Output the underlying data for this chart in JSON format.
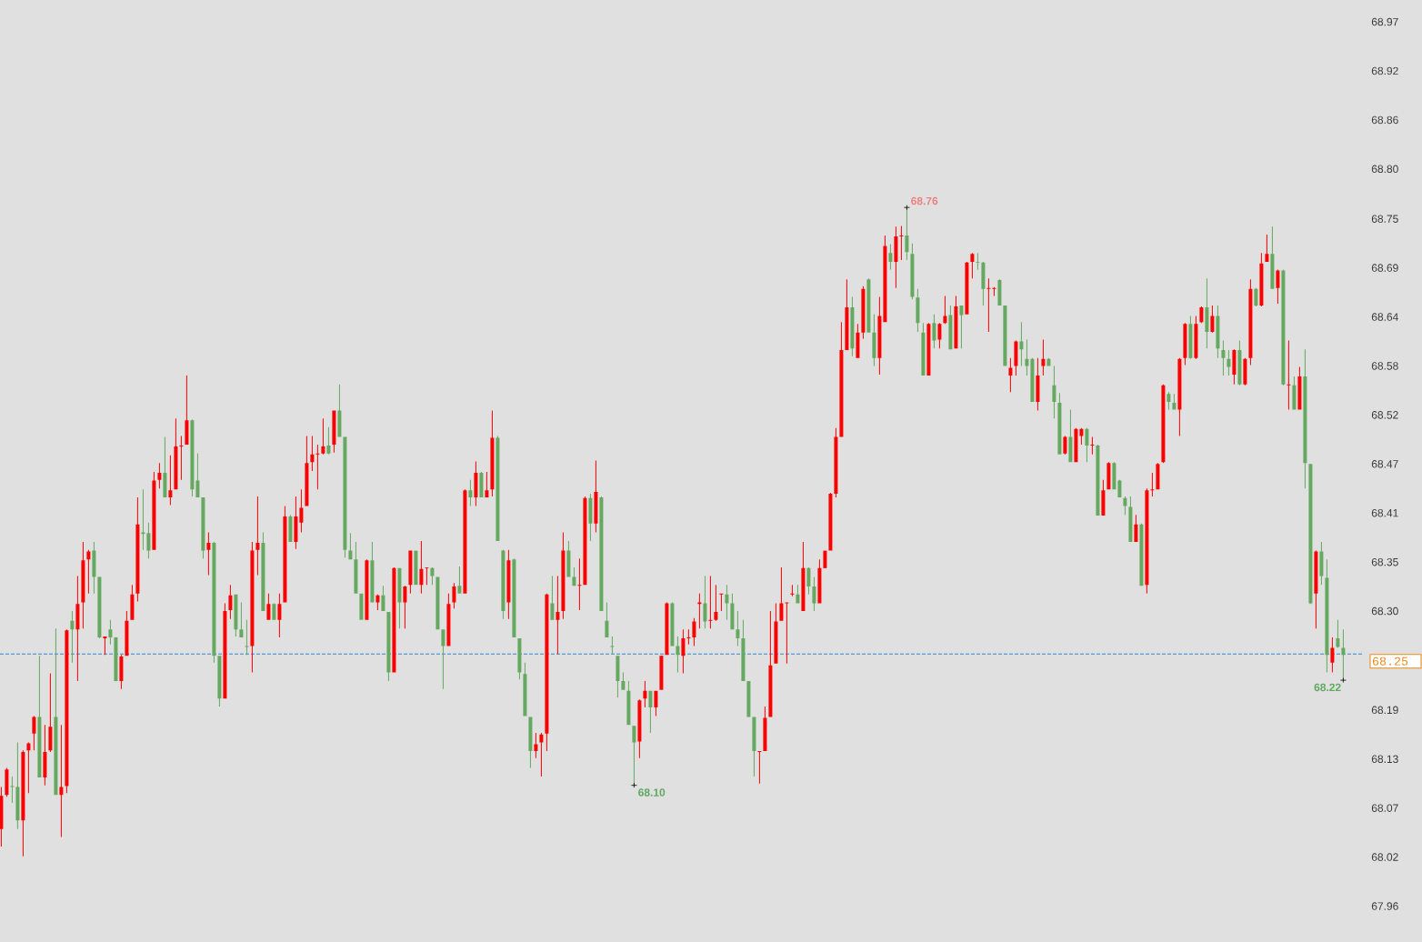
{
  "chart_data": {
    "type": "candlestick",
    "categories": [
      null,
      null,
      null,
      null,
      null,
      null,
      null,
      null,
      null,
      null,
      null,
      null,
      null,
      null,
      null,
      null,
      null,
      null,
      null,
      null,
      null,
      null,
      null,
      null,
      null,
      null,
      null,
      null,
      null,
      null,
      null,
      null,
      null,
      null,
      null,
      null,
      null,
      null,
      null,
      null,
      null,
      null,
      null,
      null,
      null,
      null,
      null,
      null,
      null,
      null,
      null,
      null,
      null,
      null,
      null,
      null,
      null,
      null,
      null,
      null,
      null,
      null,
      null,
      null,
      null,
      null,
      null,
      null,
      null,
      null,
      null,
      null,
      null,
      null,
      null,
      null,
      null,
      null,
      null,
      null,
      null,
      null,
      null,
      null,
      null,
      null,
      null,
      null,
      null,
      null,
      null,
      null,
      null,
      null,
      null,
      null,
      null,
      null,
      null,
      null,
      null,
      null,
      null,
      null,
      null,
      null,
      null,
      null,
      null,
      null,
      null,
      null,
      null,
      null,
      null,
      null,
      null,
      null,
      null,
      null,
      null,
      null,
      null,
      null,
      null,
      null,
      null,
      null,
      null,
      null,
      null,
      null,
      null,
      null,
      null,
      null,
      null,
      null,
      null,
      null,
      null,
      null,
      null,
      null,
      null,
      null,
      null,
      null,
      null,
      null,
      null,
      null,
      null,
      null,
      null,
      null,
      null,
      null,
      null,
      null,
      null,
      null,
      null,
      null,
      null,
      null,
      null,
      null,
      null,
      null,
      null,
      null,
      null,
      null,
      null,
      null,
      null,
      null,
      null,
      null,
      null,
      null,
      null,
      null,
      null,
      null,
      null,
      null,
      null,
      null,
      null,
      null,
      null,
      null,
      null,
      null,
      null,
      null,
      null,
      null,
      null,
      null,
      null,
      null,
      null,
      null,
      null,
      null,
      null,
      null,
      null,
      null,
      null,
      null,
      null,
      null,
      null,
      null,
      null,
      null,
      null,
      null,
      null,
      null,
      null,
      null,
      null,
      null,
      null,
      null,
      null,
      null,
      null,
      null,
      null,
      null,
      null,
      null,
      null,
      null,
      null,
      null,
      null,
      null,
      null,
      null,
      null
    ],
    "ohlc": [
      [
        68.05,
        68.098,
        68.03,
        68.088
      ],
      [
        68.089,
        68.12,
        68.087,
        68.118
      ],
      [
        68.099,
        68.11,
        68.08,
        68.098
      ],
      [
        68.098,
        68.149,
        68.05,
        68.06
      ],
      [
        68.06,
        68.14,
        68.019,
        68.138
      ],
      [
        68.14,
        68.149,
        68.091,
        68.148
      ],
      [
        68.159,
        68.179,
        68.14,
        68.178
      ],
      [
        68.178,
        68.248,
        68.109,
        68.109
      ],
      [
        68.109,
        68.169,
        68.1,
        68.138
      ],
      [
        68.14,
        68.228,
        68.138,
        68.167
      ],
      [
        68.178,
        68.279,
        68.089,
        68.089
      ],
      [
        68.089,
        68.169,
        68.041,
        68.098
      ],
      [
        68.099,
        68.278,
        68.091,
        68.277
      ],
      [
        68.288,
        68.299,
        68.24,
        68.278
      ],
      [
        68.278,
        68.339,
        68.219,
        68.307
      ],
      [
        68.309,
        68.378,
        68.279,
        68.357
      ],
      [
        68.358,
        68.369,
        68.319,
        68.367
      ],
      [
        68.368,
        68.378,
        68.319,
        68.338
      ],
      [
        68.338,
        68.338,
        68.268,
        68.269
      ],
      [
        68.268,
        68.27,
        68.249,
        68.27
      ],
      [
        68.278,
        68.289,
        68.261,
        68.269
      ],
      [
        68.269,
        68.269,
        68.219,
        68.219
      ],
      [
        68.219,
        68.249,
        68.21,
        68.247
      ],
      [
        68.248,
        68.299,
        68.248,
        68.288
      ],
      [
        68.289,
        68.329,
        68.289,
        68.318
      ],
      [
        68.319,
        68.429,
        68.31,
        68.398
      ],
      [
        68.389,
        68.438,
        68.369,
        68.387
      ],
      [
        68.388,
        68.4,
        68.359,
        68.368
      ],
      [
        68.369,
        68.458,
        68.369,
        68.448
      ],
      [
        68.449,
        68.468,
        68.439,
        68.457
      ],
      [
        68.457,
        68.498,
        68.429,
        68.429
      ],
      [
        68.429,
        68.477,
        68.42,
        68.437
      ],
      [
        68.438,
        68.519,
        68.438,
        68.487
      ],
      [
        68.487,
        68.499,
        68.449,
        68.488
      ],
      [
        68.489,
        68.568,
        68.489,
        68.517
      ],
      [
        68.517,
        68.518,
        68.43,
        68.438
      ],
      [
        68.448,
        68.479,
        68.429,
        68.429
      ],
      [
        68.429,
        68.429,
        68.359,
        68.368
      ],
      [
        68.369,
        68.389,
        68.34,
        68.377
      ],
      [
        68.377,
        68.378,
        68.24,
        68.248
      ],
      [
        68.248,
        68.248,
        68.19,
        68.199
      ],
      [
        68.199,
        68.308,
        68.199,
        68.299
      ],
      [
        68.3,
        68.329,
        68.29,
        68.317
      ],
      [
        68.318,
        68.318,
        68.27,
        68.278
      ],
      [
        68.278,
        68.309,
        68.269,
        68.269
      ],
      [
        68.259,
        68.289,
        68.249,
        68.258
      ],
      [
        68.259,
        68.378,
        68.229,
        68.368
      ],
      [
        68.369,
        68.43,
        68.34,
        68.377
      ],
      [
        68.377,
        68.389,
        68.299,
        68.299
      ],
      [
        68.289,
        68.319,
        68.289,
        68.307
      ],
      [
        68.307,
        68.308,
        68.289,
        68.289
      ],
      [
        68.289,
        68.319,
        68.269,
        68.307
      ],
      [
        68.309,
        68.419,
        68.309,
        68.407
      ],
      [
        68.407,
        68.409,
        68.378,
        68.378
      ],
      [
        68.378,
        68.43,
        68.37,
        68.407
      ],
      [
        68.4,
        68.438,
        68.389,
        68.417
      ],
      [
        68.419,
        68.499,
        68.419,
        68.468
      ],
      [
        68.469,
        68.499,
        68.459,
        68.478
      ],
      [
        68.478,
        68.489,
        68.438,
        68.479
      ],
      [
        68.479,
        68.519,
        68.478,
        68.487
      ],
      [
        68.488,
        68.509,
        68.478,
        68.479
      ],
      [
        68.489,
        68.528,
        68.48,
        68.528
      ],
      [
        68.528,
        68.558,
        68.498,
        68.498
      ],
      [
        68.498,
        68.498,
        68.36,
        68.369
      ],
      [
        68.368,
        68.388,
        68.358,
        68.358
      ],
      [
        68.358,
        68.378,
        68.319,
        68.319
      ],
      [
        68.319,
        68.319,
        68.289,
        68.289
      ],
      [
        68.289,
        68.358,
        68.289,
        68.357
      ],
      [
        68.357,
        68.378,
        68.309,
        68.309
      ],
      [
        68.309,
        68.318,
        68.3,
        68.317
      ],
      [
        68.317,
        68.328,
        68.299,
        68.299
      ],
      [
        68.298,
        68.298,
        68.219,
        68.229
      ],
      [
        68.229,
        68.349,
        68.229,
        68.348
      ],
      [
        68.348,
        68.348,
        68.279,
        68.309
      ],
      [
        68.309,
        68.328,
        68.279,
        68.327
      ],
      [
        68.329,
        68.368,
        68.319,
        68.368
      ],
      [
        68.368,
        68.368,
        68.329,
        68.329
      ],
      [
        68.329,
        68.379,
        68.319,
        68.347
      ],
      [
        68.348,
        68.349,
        68.329,
        68.349
      ],
      [
        68.348,
        68.349,
        68.329,
        68.339
      ],
      [
        68.338,
        68.338,
        68.278,
        68.278
      ],
      [
        68.278,
        68.278,
        68.21,
        68.259
      ],
      [
        68.259,
        68.319,
        68.259,
        68.307
      ],
      [
        68.309,
        68.331,
        68.302,
        68.327
      ],
      [
        68.328,
        68.35,
        68.319,
        68.319
      ],
      [
        68.319,
        68.438,
        68.319,
        68.437
      ],
      [
        68.437,
        68.449,
        68.419,
        68.429
      ],
      [
        68.429,
        68.47,
        68.419,
        68.457
      ],
      [
        68.457,
        68.458,
        68.429,
        68.429
      ],
      [
        68.429,
        68.458,
        68.429,
        68.437
      ],
      [
        68.438,
        68.528,
        68.43,
        68.497
      ],
      [
        68.497,
        68.499,
        68.379,
        68.379
      ],
      [
        68.368,
        68.369,
        68.29,
        68.299
      ],
      [
        68.309,
        68.369,
        68.29,
        68.357
      ],
      [
        68.358,
        68.359,
        68.269,
        68.269
      ],
      [
        68.268,
        68.268,
        68.221,
        68.229
      ],
      [
        68.227,
        68.24,
        68.179,
        68.179
      ],
      [
        68.178,
        68.178,
        68.12,
        68.139
      ],
      [
        68.139,
        68.16,
        68.131,
        68.147
      ],
      [
        68.149,
        68.16,
        68.11,
        68.158
      ],
      [
        68.159,
        68.319,
        68.139,
        68.318
      ],
      [
        68.308,
        68.339,
        68.289,
        68.289
      ],
      [
        68.289,
        68.339,
        68.25,
        68.298
      ],
      [
        68.299,
        68.389,
        68.29,
        68.368
      ],
      [
        68.368,
        68.379,
        68.338,
        68.338
      ],
      [
        68.338,
        68.349,
        68.328,
        68.328
      ],
      [
        68.328,
        68.359,
        68.3,
        68.329
      ],
      [
        68.329,
        68.43,
        68.329,
        68.428
      ],
      [
        68.428,
        68.433,
        68.379,
        68.399
      ],
      [
        68.399,
        68.471,
        68.389,
        68.435
      ],
      [
        68.429,
        68.43,
        68.299,
        68.299
      ],
      [
        68.288,
        68.309,
        68.269,
        68.269
      ],
      [
        68.259,
        68.27,
        68.25,
        68.258
      ],
      [
        68.248,
        68.248,
        68.2,
        68.219
      ],
      [
        68.219,
        68.229,
        68.209,
        68.209
      ],
      [
        68.208,
        68.219,
        68.169,
        68.169
      ],
      [
        68.168,
        68.168,
        68.1,
        68.149
      ],
      [
        68.15,
        68.198,
        68.131,
        68.197
      ],
      [
        68.199,
        68.219,
        68.189,
        68.208
      ],
      [
        68.208,
        68.208,
        68.16,
        68.189
      ],
      [
        68.189,
        68.208,
        68.179,
        68.208
      ],
      [
        68.209,
        68.248,
        68.209,
        68.248
      ],
      [
        68.249,
        68.309,
        68.249,
        68.308
      ],
      [
        68.308,
        68.309,
        68.259,
        68.259
      ],
      [
        68.259,
        68.27,
        68.229,
        68.249
      ],
      [
        68.248,
        68.278,
        68.228,
        68.268
      ],
      [
        68.268,
        68.278,
        68.261,
        68.269
      ],
      [
        68.269,
        68.291,
        68.259,
        68.287
      ],
      [
        68.307,
        68.319,
        68.279,
        68.309
      ],
      [
        68.308,
        68.339,
        68.279,
        68.287
      ],
      [
        68.288,
        68.339,
        68.279,
        68.289
      ],
      [
        68.289,
        68.329,
        68.288,
        68.298
      ],
      [
        68.318,
        68.319,
        68.299,
        68.319
      ],
      [
        68.318,
        68.329,
        68.289,
        68.308
      ],
      [
        68.308,
        68.319,
        68.278,
        68.278
      ],
      [
        68.278,
        68.299,
        68.259,
        68.268
      ],
      [
        68.268,
        68.289,
        68.219,
        68.219
      ],
      [
        68.219,
        68.219,
        68.178,
        68.178
      ],
      [
        68.178,
        68.178,
        68.11,
        68.139
      ],
      [
        68.138,
        68.139,
        68.102,
        68.139
      ],
      [
        68.139,
        68.19,
        68.139,
        68.177
      ],
      [
        68.178,
        68.299,
        68.178,
        68.237
      ],
      [
        68.239,
        68.308,
        68.239,
        68.287
      ],
      [
        68.288,
        68.349,
        68.288,
        68.308
      ],
      [
        68.308,
        68.309,
        68.239,
        68.309
      ],
      [
        68.318,
        68.329,
        68.316,
        68.319
      ],
      [
        68.318,
        68.329,
        68.308,
        68.308
      ],
      [
        68.299,
        68.378,
        68.299,
        68.348
      ],
      [
        68.348,
        68.349,
        68.318,
        68.327
      ],
      [
        68.327,
        68.338,
        68.299,
        68.308
      ],
      [
        68.308,
        68.358,
        68.308,
        68.348
      ],
      [
        68.348,
        68.368,
        68.348,
        68.368
      ],
      [
        68.368,
        68.434,
        68.368,
        68.433
      ],
      [
        68.433,
        68.508,
        68.429,
        68.498
      ],
      [
        68.498,
        68.629,
        68.498,
        68.597
      ],
      [
        68.597,
        68.678,
        68.597,
        68.646
      ],
      [
        68.646,
        68.658,
        68.59,
        68.599
      ],
      [
        68.588,
        68.627,
        68.588,
        68.617
      ],
      [
        68.617,
        68.67,
        68.61,
        68.667
      ],
      [
        68.678,
        68.679,
        68.617,
        68.617
      ],
      [
        68.617,
        68.638,
        68.579,
        68.588
      ],
      [
        68.588,
        68.658,
        68.569,
        68.636
      ],
      [
        68.629,
        68.728,
        68.629,
        68.716
      ],
      [
        68.708,
        68.718,
        68.689,
        68.698
      ],
      [
        68.698,
        68.738,
        68.668,
        68.727
      ],
      [
        68.727,
        68.739,
        68.7,
        68.728
      ],
      [
        68.728,
        68.76,
        68.7,
        68.709
      ],
      [
        68.707,
        68.719,
        68.655,
        68.658
      ],
      [
        68.657,
        68.667,
        68.618,
        68.628
      ],
      [
        68.617,
        68.628,
        68.568,
        68.568
      ],
      [
        68.568,
        68.628,
        68.568,
        68.627
      ],
      [
        68.628,
        68.638,
        68.599,
        68.608
      ],
      [
        68.609,
        68.628,
        68.599,
        68.627
      ],
      [
        68.628,
        68.659,
        68.627,
        68.636
      ],
      [
        68.637,
        68.648,
        68.598,
        68.598
      ],
      [
        68.599,
        68.659,
        68.599,
        68.647
      ],
      [
        68.648,
        68.648,
        68.599,
        68.637
      ],
      [
        68.638,
        68.698,
        68.638,
        68.697
      ],
      [
        68.698,
        68.708,
        68.679,
        68.707
      ],
      [
        68.698,
        68.708,
        68.689,
        68.697
      ],
      [
        68.697,
        68.698,
        68.648,
        68.667
      ],
      [
        68.667,
        68.679,
        68.618,
        68.668
      ],
      [
        68.667,
        68.669,
        68.659,
        68.668
      ],
      [
        68.677,
        68.678,
        68.648,
        68.648
      ],
      [
        68.648,
        68.648,
        68.579,
        68.579
      ],
      [
        68.568,
        68.588,
        68.549,
        68.577
      ],
      [
        68.579,
        68.608,
        68.568,
        68.607
      ],
      [
        68.607,
        68.629,
        68.579,
        68.598
      ],
      [
        68.587,
        68.609,
        68.568,
        68.579
      ],
      [
        68.587,
        68.588,
        68.538,
        68.538
      ],
      [
        68.538,
        68.588,
        68.528,
        68.568
      ],
      [
        68.579,
        68.609,
        68.568,
        68.587
      ],
      [
        68.587,
        68.588,
        68.579,
        68.579
      ],
      [
        68.557,
        68.579,
        68.519,
        68.538
      ],
      [
        68.537,
        68.548,
        68.478,
        68.478
      ],
      [
        68.479,
        68.499,
        68.478,
        68.498
      ],
      [
        68.498,
        68.529,
        68.469,
        68.469
      ],
      [
        68.469,
        68.508,
        68.469,
        68.507
      ],
      [
        68.499,
        68.508,
        68.489,
        68.507
      ],
      [
        68.507,
        68.508,
        68.469,
        68.488
      ],
      [
        68.488,
        68.498,
        68.478,
        68.489
      ],
      [
        68.488,
        68.489,
        68.408,
        68.408
      ],
      [
        68.408,
        68.449,
        68.408,
        68.437
      ],
      [
        68.438,
        68.469,
        68.438,
        68.468
      ],
      [
        68.468,
        68.469,
        68.438,
        68.438
      ],
      [
        68.448,
        68.449,
        68.429,
        68.429
      ],
      [
        68.428,
        68.43,
        68.409,
        68.419
      ],
      [
        68.418,
        68.43,
        68.378,
        68.378
      ],
      [
        68.378,
        68.409,
        68.378,
        68.398
      ],
      [
        68.398,
        68.399,
        68.328,
        68.328
      ],
      [
        68.329,
        68.439,
        68.319,
        68.437
      ],
      [
        68.437,
        68.457,
        68.43,
        68.438
      ],
      [
        68.438,
        68.468,
        68.438,
        68.467
      ],
      [
        68.469,
        68.558,
        68.468,
        68.557
      ],
      [
        68.547,
        68.549,
        68.529,
        68.538
      ],
      [
        68.537,
        68.547,
        68.529,
        68.529
      ],
      [
        68.529,
        68.588,
        68.499,
        68.587
      ],
      [
        68.588,
        68.628,
        68.58,
        68.627
      ],
      [
        68.627,
        68.636,
        68.587,
        68.588
      ],
      [
        68.588,
        68.636,
        68.587,
        68.627
      ],
      [
        68.629,
        68.647,
        68.628,
        68.646
      ],
      [
        68.646,
        68.679,
        68.599,
        68.618
      ],
      [
        68.618,
        68.648,
        68.617,
        68.636
      ],
      [
        68.636,
        68.648,
        68.588,
        68.599
      ],
      [
        68.597,
        68.608,
        68.568,
        68.588
      ],
      [
        68.587,
        68.597,
        68.568,
        68.578
      ],
      [
        68.569,
        68.598,
        68.558,
        68.597
      ],
      [
        68.597,
        68.608,
        68.557,
        68.558
      ],
      [
        68.558,
        68.588,
        68.557,
        68.587
      ],
      [
        68.588,
        68.678,
        68.58,
        68.667
      ],
      [
        68.667,
        68.668,
        68.647,
        68.648
      ],
      [
        68.648,
        68.708,
        68.647,
        68.696
      ],
      [
        68.698,
        68.729,
        68.698,
        68.707
      ],
      [
        68.707,
        68.738,
        68.667,
        68.667
      ],
      [
        68.668,
        68.689,
        68.65,
        68.688
      ],
      [
        68.688,
        68.689,
        68.557,
        68.558
      ],
      [
        68.557,
        68.608,
        68.529,
        68.558
      ],
      [
        68.557,
        68.567,
        68.529,
        68.529
      ],
      [
        68.529,
        68.578,
        68.529,
        68.567
      ],
      [
        68.567,
        68.598,
        68.439,
        68.468
      ],
      [
        68.467,
        68.467,
        68.307,
        68.308
      ],
      [
        68.319,
        68.368,
        68.279,
        68.367
      ],
      [
        68.367,
        68.378,
        68.329,
        68.339
      ],
      [
        68.337,
        68.358,
        68.229,
        68.249
      ],
      [
        68.24,
        68.269,
        68.229,
        68.257
      ],
      [
        68.268,
        68.289,
        68.257,
        68.258
      ],
      [
        68.257,
        68.278,
        68.22,
        68.249
      ]
    ],
    "colors": [
      "#ff0000",
      "#ff0000",
      "#65a860",
      "#65a860",
      "#ff0000",
      "#ff0000",
      "#ff0000",
      "#65a860",
      "#ff0000",
      "#ff0000",
      "#65a860",
      "#ff0000",
      "#ff0000",
      "#65a860",
      "#ff0000",
      "#ff0000",
      "#ff0000",
      "#65a860",
      "#65a860",
      "#ff0000",
      "#65a860",
      "#65a860",
      "#ff0000",
      "#ff0000",
      "#ff0000",
      "#ff0000",
      "#65a860",
      "#65a860",
      "#ff0000",
      "#ff0000",
      "#65a860",
      "#ff0000",
      "#ff0000",
      "#ff0000",
      "#ff0000",
      "#65a860",
      "#65a860",
      "#65a860",
      "#ff0000",
      "#65a860",
      "#65a860",
      "#ff0000",
      "#ff0000",
      "#65a860",
      "#65a860",
      "#65a860",
      "#ff0000",
      "#ff0000",
      "#65a860",
      "#ff0000",
      "#65a860",
      "#ff0000",
      "#ff0000",
      "#65a860",
      "#ff0000",
      "#ff0000",
      "#ff0000",
      "#ff0000",
      "#ff0000",
      "#ff0000",
      "#65a860",
      "#ff0000",
      "#65a860",
      "#65a860",
      "#65a860",
      "#65a860",
      "#65a860",
      "#ff0000",
      "#65a860",
      "#ff0000",
      "#65a860",
      "#65a860",
      "#ff0000",
      "#65a860",
      "#ff0000",
      "#ff0000",
      "#65a860",
      "#ff0000",
      "#ff0000",
      "#65a860",
      "#65a860",
      "#65a860",
      "#ff0000",
      "#ff0000",
      "#65a860",
      "#ff0000",
      "#65a860",
      "#ff0000",
      "#65a860",
      "#ff0000",
      "#ff0000",
      "#65a860",
      "#65a860",
      "#ff0000",
      "#65a860",
      "#65a860",
      "#65a860",
      "#65a860",
      "#ff0000",
      "#ff0000",
      "#ff0000",
      "#65a860",
      "#ff0000",
      "#ff0000",
      "#65a860",
      "#65a860",
      "#ff0000",
      "#ff0000",
      "#65a860",
      "#ff0000",
      "#65a860",
      "#65a860",
      "#65a860",
      "#65a860",
      "#65a860",
      "#65a860",
      "#65a860",
      "#ff0000",
      "#ff0000",
      "#65a860",
      "#ff0000",
      "#ff0000",
      "#ff0000",
      "#65a860",
      "#65a860",
      "#ff0000",
      "#ff0000",
      "#ff0000",
      "#ff0000",
      "#65a860",
      "#ff0000",
      "#ff0000",
      "#ff0000",
      "#65a860",
      "#65a860",
      "#65a860",
      "#65a860",
      "#65a860",
      "#65a860",
      "#ff0000",
      "#ff0000",
      "#ff0000",
      "#ff0000",
      "#ff0000",
      "#ff0000",
      "#ff0000",
      "#65a860",
      "#ff0000",
      "#65a860",
      "#65a860",
      "#ff0000",
      "#ff0000",
      "#ff0000",
      "#ff0000",
      "#ff0000",
      "#ff0000",
      "#65a860",
      "#ff0000",
      "#ff0000",
      "#65a860",
      "#65a860",
      "#ff0000",
      "#ff0000",
      "#65a860",
      "#ff0000",
      "#ff0000",
      "#65a860",
      "#65a860",
      "#65a860",
      "#65a860",
      "#ff0000",
      "#65a860",
      "#ff0000",
      "#ff0000",
      "#65a860",
      "#ff0000",
      "#65a860",
      "#ff0000",
      "#ff0000",
      "#65a860",
      "#65a860",
      "#ff0000",
      "#ff0000",
      "#65a860",
      "#65a860",
      "#ff0000",
      "#ff0000",
      "#65a860",
      "#65a860",
      "#65a860",
      "#ff0000",
      "#ff0000",
      "#65a860",
      "#65a860",
      "#65a860",
      "#ff0000",
      "#65a860",
      "#ff0000",
      "#ff0000",
      "#65a860",
      "#ff0000",
      "#65a860",
      "#ff0000",
      "#ff0000",
      "#65a860",
      "#65a860",
      "#65a860",
      "#65a860",
      "#ff0000",
      "#65a860",
      "#ff0000",
      "#ff0000",
      "#ff0000",
      "#ff0000",
      "#65a860",
      "#65a860",
      "#ff0000",
      "#ff0000",
      "#65a860",
      "#ff0000",
      "#ff0000",
      "#65a860",
      "#ff0000",
      "#65a860",
      "#65a860",
      "#65a860",
      "#ff0000",
      "#65a860",
      "#ff0000",
      "#ff0000",
      "#65a860",
      "#ff0000",
      "#ff0000",
      "#65a860",
      "#ff0000",
      "#65a860",
      "#ff0000",
      "#65a860",
      "#ff0000",
      "#65a860",
      "#65a860",
      "#ff0000",
      "#65a860",
      "#65a860",
      "#ff0000",
      "#65a860",
      "#65a860"
    ],
    "ylim": [
      67.921,
      68.997
    ],
    "yticks": [
      {
        "value": 67.962,
        "label": "67.96"
      },
      {
        "value": 68.018,
        "label": "68.02"
      },
      {
        "value": 68.074,
        "label": "68.07"
      },
      68.13,
      {
        "value": 68.186,
        "label": "68.19"
      },
      {
        "value": 68.299,
        "label": "68.30"
      },
      {
        "value": 68.355,
        "label": "68.35"
      },
      {
        "value": 68.411,
        "label": "68.41"
      },
      {
        "value": 68.467,
        "label": "68.47"
      },
      {
        "value": 68.523,
        "label": "68.52"
      },
      {
        "value": 68.579,
        "label": "68.58"
      },
      {
        "value": 68.635,
        "label": "68.64"
      },
      {
        "value": 68.691,
        "label": "68.69"
      },
      {
        "value": 68.747,
        "label": "68.75"
      },
      {
        "value": 68.804,
        "label": "68.80"
      },
      {
        "value": 68.86,
        "label": "68.86"
      },
      {
        "value": 68.916,
        "label": "68.92"
      },
      {
        "value": 68.972,
        "label": "68.97"
      }
    ],
    "tick_labels": "y",
    "ref_lines": [
      {
        "axis": "y",
        "value": 68.25,
        "label": "68.25",
        "color": "#2f88d8",
        "line_style": "dashed"
      }
    ],
    "annotations": [
      "68.76",
      "68.10",
      "68.22"
    ]
  }
}
